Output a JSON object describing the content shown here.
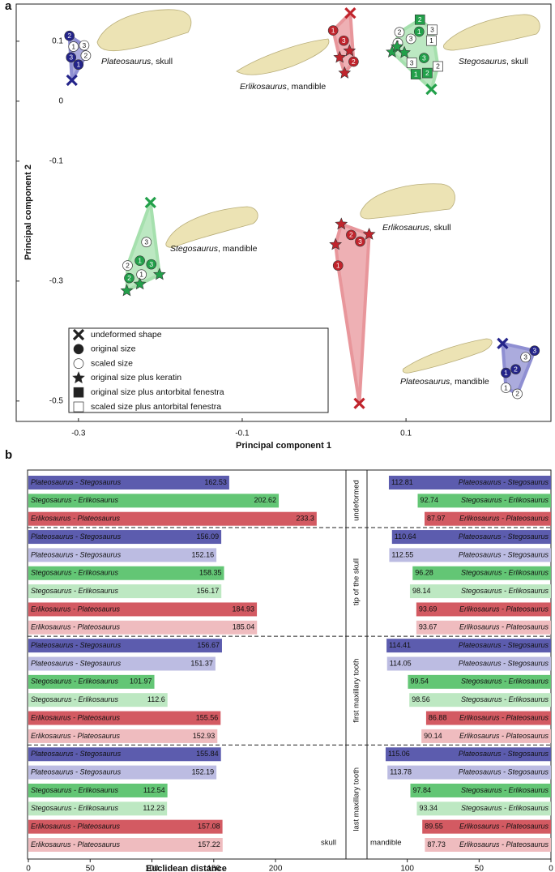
{
  "panel_labels": [
    "a",
    "b"
  ],
  "chart_data": [
    {
      "type": "scatter",
      "xlabel": "Principal component 1",
      "ylabel": "Principal component 2",
      "xlim": [
        -0.376,
        0.277
      ],
      "ylim": [
        -0.534,
        0.162
      ],
      "xticks": [
        -0.3,
        -0.1,
        0.1
      ],
      "yticks": [
        0.1,
        0,
        -0.1,
        -0.3,
        -0.5
      ],
      "legend": [
        {
          "marker": "x",
          "label": "undeformed shape"
        },
        {
          "marker": "circle",
          "label": "original size"
        },
        {
          "marker": "open-circle",
          "label": "scaled size"
        },
        {
          "marker": "star",
          "label": "original size plus keratin"
        },
        {
          "marker": "square",
          "label": "original size plus antorbital fenestra"
        },
        {
          "marker": "open-square",
          "label": "scaled size plus antorbital fenestra"
        }
      ],
      "series": [
        {
          "genus": "Plateosaurus",
          "part": ", skull",
          "color": "#24248a",
          "hull_color": "#8f8fd2",
          "x": [
            -0.308,
            -0.311,
            -0.306,
            -0.293,
            -0.309,
            -0.3,
            -0.291
          ],
          "y": [
            0.035,
            0.109,
            0.091,
            0.093,
            0.073,
            0.061,
            0.076
          ],
          "markers": [
            "x",
            "circle",
            "open-circle",
            "open-circle",
            "circle",
            "circle",
            "open-circle"
          ],
          "labels": [
            null,
            "2",
            "1",
            "3",
            "3",
            "1",
            "2"
          ]
        },
        {
          "genus": "Erlikosaurus",
          "part": ", mandible",
          "color": "#c0242c",
          "hull_color": "#e8969b",
          "x": [
            0.032,
            0.011,
            0.024,
            0.031,
            0.019,
            0.036,
            0.025
          ],
          "y": [
            0.147,
            0.118,
            0.101,
            0.084,
            0.073,
            0.066,
            0.047
          ],
          "markers": [
            "x",
            "circle",
            "circle",
            "star",
            "star",
            "circle",
            "star"
          ],
          "labels": [
            null,
            "1",
            "3",
            null,
            null,
            "2",
            null
          ]
        },
        {
          "genus": "Stegosaurus",
          "part": ", skull",
          "color": "#22a04a",
          "hull_color": "#a6e0ae",
          "x": [
            0.117,
            0.092,
            0.116,
            0.132,
            0.09,
            0.106,
            0.131,
            0.083,
            0.098,
            0.089,
            0.122,
            0.107,
            0.139,
            0.126,
            0.112,
            0.131
          ],
          "y": [
            0.136,
            0.115,
            0.116,
            0.119,
            0.097,
            0.104,
            0.101,
            0.082,
            0.081,
            0.091,
            0.072,
            0.064,
            0.058,
            0.047,
            0.045,
            0.02
          ],
          "markers": [
            "square",
            "open-circle",
            "circle",
            "open-square",
            "open-circle",
            "open-circle",
            "open-square",
            "star",
            "star",
            "star",
            "circle",
            "open-square",
            "open-square",
            "square",
            "square",
            "x"
          ],
          "labels": [
            "2",
            "2",
            "1",
            "3",
            "1",
            "3",
            "1",
            null,
            null,
            null,
            "3",
            "3",
            "2",
            "2",
            "1",
            null
          ]
        },
        {
          "genus": "Stegosaurus",
          "part": ", mandible",
          "color": "#22a04a",
          "hull_color": "#a6e0ae",
          "x": [
            -0.212,
            -0.217,
            -0.24,
            -0.225,
            -0.211,
            -0.238,
            -0.223,
            -0.201,
            -0.225,
            -0.241
          ],
          "y": [
            -0.169,
            -0.235,
            -0.274,
            -0.266,
            -0.272,
            -0.295,
            -0.289,
            -0.289,
            -0.305,
            -0.316
          ],
          "markers": [
            "x",
            "open-circle",
            "open-circle",
            "circle",
            "circle",
            "circle",
            "open-circle",
            "star",
            "star",
            "star"
          ],
          "labels": [
            null,
            "3",
            "2",
            "1",
            "3",
            "2",
            "1",
            null,
            null,
            null
          ]
        },
        {
          "genus": "Erlikosaurus",
          "part": ", skull",
          "color": "#c0242c",
          "hull_color": "#e8969b",
          "x": [
            0.021,
            0.033,
            0.044,
            0.055,
            0.014,
            0.017,
            0.043
          ],
          "y": [
            -0.205,
            -0.223,
            -0.234,
            -0.222,
            -0.239,
            -0.274,
            -0.504
          ],
          "markers": [
            "star",
            "circle",
            "circle",
            "star",
            "star",
            "circle",
            "x"
          ],
          "labels": [
            null,
            "2",
            "3",
            null,
            null,
            "1",
            null
          ]
        },
        {
          "genus": "Plateosaurus",
          "part": ", mandible",
          "color": "#24248a",
          "hull_color": "#8f8fd2",
          "x": [
            0.218,
            0.257,
            0.246,
            0.234,
            0.222,
            0.222,
            0.236
          ],
          "y": [
            -0.404,
            -0.416,
            -0.427,
            -0.447,
            -0.453,
            -0.478,
            -0.488
          ],
          "markers": [
            "x",
            "circle",
            "open-circle",
            "circle",
            "circle",
            "open-circle",
            "open-circle"
          ],
          "labels": [
            null,
            "3",
            "3",
            "2",
            "1",
            "1",
            "2"
          ]
        }
      ]
    },
    {
      "type": "mirrored-bar",
      "xlabel": "Euclidean distance",
      "panels": [
        {
          "name": "skull",
          "xlim": [
            0,
            257
          ],
          "xticks": [
            0,
            50,
            100,
            150,
            200
          ]
        },
        {
          "name": "mandible",
          "xlim": [
            0,
            128
          ],
          "xticks": [
            0,
            50,
            100
          ]
        }
      ],
      "groups": [
        {
          "name": "undeformed",
          "rows": [
            {
              "label": "Plateosaurus - Stegosaurus",
              "color": "#5c5cae",
              "skull": 162.53,
              "mandible": 112.81
            },
            {
              "label": "Stegosaurus - Erlikosaurus",
              "color": "#63c675",
              "skull": 202.62,
              "mandible": 92.74
            },
            {
              "label": "Erlikosaurus - Plateosaurus",
              "color": "#d35a62",
              "skull": 233.3,
              "mandible": 87.97
            }
          ]
        },
        {
          "name": "tip of the skull",
          "rows": [
            {
              "label": "Plateosaurus - Stegosaurus",
              "color": "#5c5cae",
              "skull": 156.09,
              "mandible": 110.64
            },
            {
              "label": "Plateosaurus - Stegosaurus",
              "color": "#bcbce2",
              "skull": 152.16,
              "mandible": 112.55
            },
            {
              "label": "Stegosaurus - Erlikosaurus",
              "color": "#63c675",
              "skull": 158.35,
              "mandible": 96.28
            },
            {
              "label": "Stegosaurus - Erlikosaurus",
              "color": "#bde8c2",
              "skull": 156.17,
              "mandible": 98.14
            },
            {
              "label": "Erlikosaurus - Plateosaurus",
              "color": "#d35a62",
              "skull": 184.93,
              "mandible": 93.69
            },
            {
              "label": "Erlikosaurus - Plateosaurus",
              "color": "#efbcbf",
              "skull": 185.04,
              "mandible": 93.67
            }
          ]
        },
        {
          "name": "first maxillary tooth",
          "rows": [
            {
              "label": "Plateosaurus - Stegosaurus",
              "color": "#5c5cae",
              "skull": 156.67,
              "mandible": 114.41
            },
            {
              "label": "Plateosaurus - Stegosaurus",
              "color": "#bcbce2",
              "skull": 151.37,
              "mandible": 114.05
            },
            {
              "label": "Stegosaurus - Erlikosaurus",
              "color": "#63c675",
              "skull": 101.97,
              "mandible": 99.54
            },
            {
              "label": "Stegosaurus - Erlikosaurus",
              "color": "#bde8c2",
              "skull": 112.6,
              "mandible": 98.56
            },
            {
              "label": "Erlikosaurus - Plateosaurus",
              "color": "#d35a62",
              "skull": 155.56,
              "mandible": 86.88
            },
            {
              "label": "Erlikosaurus - Plateosaurus",
              "color": "#efbcbf",
              "skull": 152.93,
              "mandible": 90.14
            }
          ]
        },
        {
          "name": "last maxillary tooth",
          "rows": [
            {
              "label": "Plateosaurus - Stegosaurus",
              "color": "#5c5cae",
              "skull": 155.84,
              "mandible": 115.06
            },
            {
              "label": "Plateosaurus - Stegosaurus",
              "color": "#bcbce2",
              "skull": 152.19,
              "mandible": 113.78
            },
            {
              "label": "Stegosaurus - Erlikosaurus",
              "color": "#63c675",
              "skull": 112.54,
              "mandible": 97.84
            },
            {
              "label": "Stegosaurus - Erlikosaurus",
              "color": "#bde8c2",
              "skull": 112.23,
              "mandible": 93.34
            },
            {
              "label": "Erlikosaurus - Plateosaurus",
              "color": "#d35a62",
              "skull": 157.08,
              "mandible": 89.55
            },
            {
              "label": "Erlikosaurus - Plateosaurus",
              "color": "#efbcbf",
              "skull": 157.22,
              "mandible": 87.73
            }
          ]
        }
      ]
    }
  ]
}
